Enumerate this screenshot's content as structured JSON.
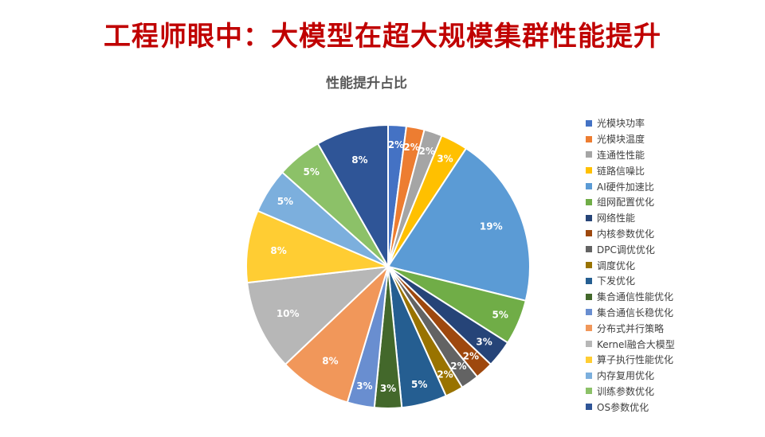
{
  "header": {
    "title": "工程师眼中：大模型在超大规模集群性能提升"
  },
  "chart_data": {
    "type": "pie",
    "title": "性能提升占比",
    "legend_position": "right",
    "start_angle_deg": 0,
    "direction": "clockwise",
    "slices": [
      {
        "label": "光模块功率",
        "value": 2,
        "color": "#4472c4",
        "text": "2%"
      },
      {
        "label": "光模块温度",
        "value": 2,
        "color": "#ed7d31",
        "text": "2%"
      },
      {
        "label": "连通性性能",
        "value": 2,
        "color": "#a5a5a5",
        "text": "2%"
      },
      {
        "label": "链路信噪比",
        "value": 3,
        "color": "#ffc000",
        "text": "3%"
      },
      {
        "label": "AI硬件加速比",
        "value": 19,
        "color": "#5b9bd5",
        "text": "19%"
      },
      {
        "label": "组网配置优化",
        "value": 5,
        "color": "#70ad47",
        "text": "5%"
      },
      {
        "label": "网络性能",
        "value": 3,
        "color": "#264478",
        "text": "3%"
      },
      {
        "label": "内核参数优化",
        "value": 2,
        "color": "#9e480e",
        "text": "2%"
      },
      {
        "label": "DPC调优优化",
        "value": 2,
        "color": "#636363",
        "text": "2%"
      },
      {
        "label": "调度优化",
        "value": 2,
        "color": "#997300",
        "text": "2%"
      },
      {
        "label": "下发优化",
        "value": 5,
        "color": "#255e91",
        "text": "5%"
      },
      {
        "label": "集合通信性能优化",
        "value": 3,
        "color": "#43682b",
        "text": "3%"
      },
      {
        "label": "集合通信长稳优化",
        "value": 3,
        "color": "#698ed0",
        "text": "3%"
      },
      {
        "label": "分布式并行策略",
        "value": 8,
        "color": "#f1975a",
        "text": "8%"
      },
      {
        "label": "Kernel融合大模型",
        "value": 10,
        "color": "#b7b7b7",
        "text": "10%"
      },
      {
        "label": "算子执行性能优化",
        "value": 8,
        "color": "#ffcd33",
        "text": "8%"
      },
      {
        "label": "内存复用优化",
        "value": 5,
        "color": "#7cafdd",
        "text": "5%"
      },
      {
        "label": "训练参数优化",
        "value": 5,
        "color": "#8cc168",
        "text": "5%"
      },
      {
        "label": "OS参数优化",
        "value": 8,
        "color": "#2f5597",
        "text": "8%"
      }
    ]
  }
}
